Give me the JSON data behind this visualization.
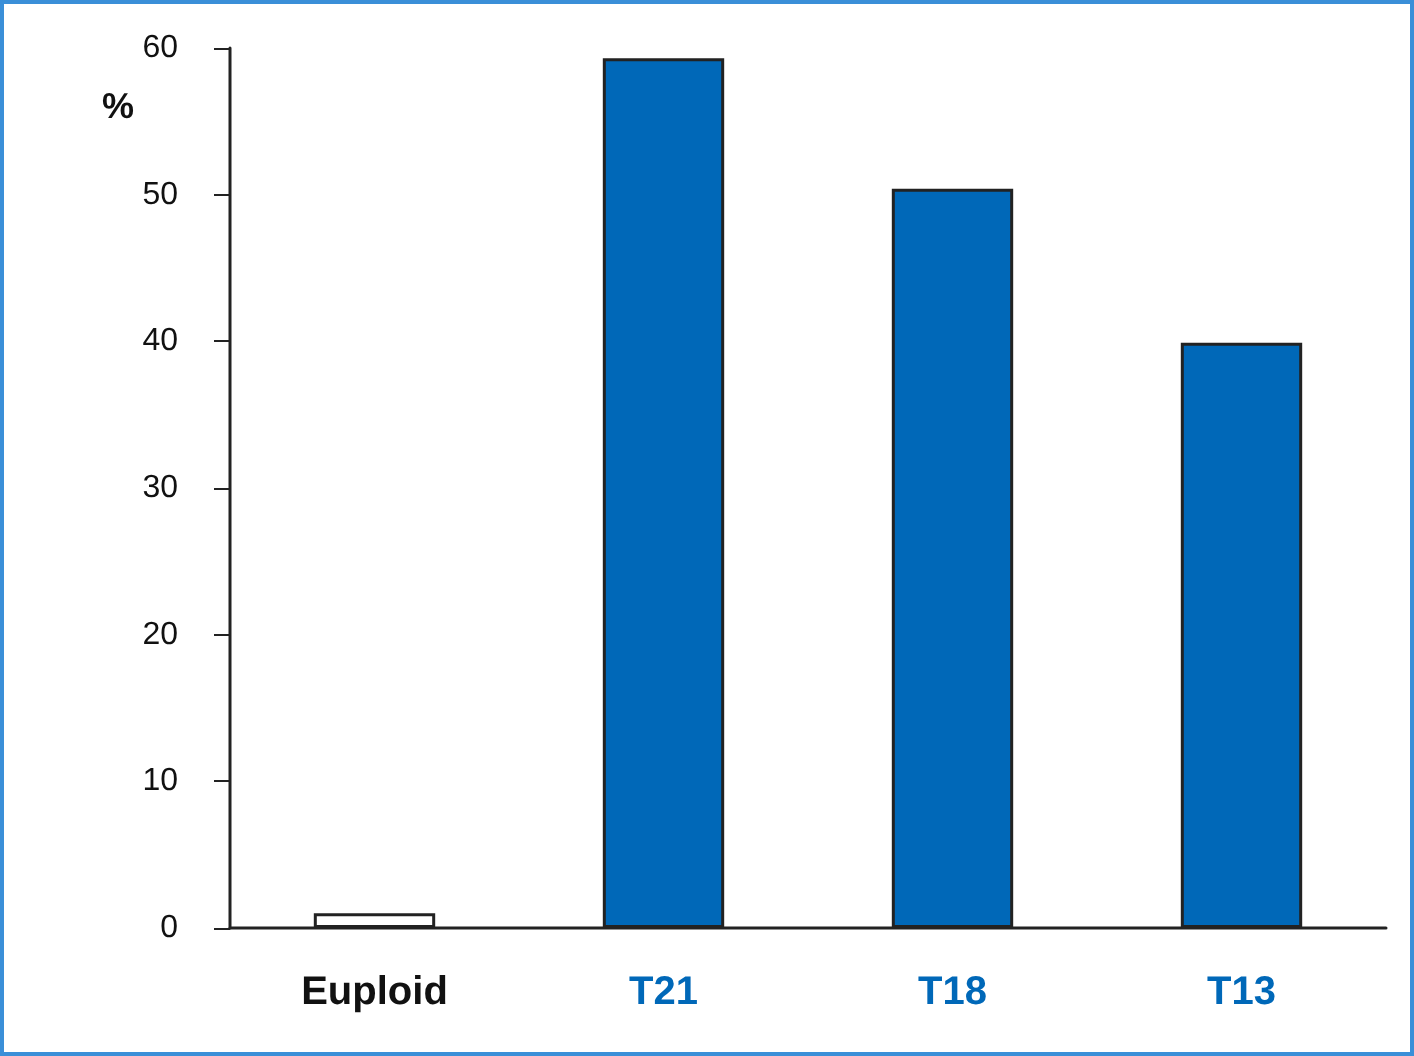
{
  "chart_data": {
    "type": "bar",
    "ylabel": "%",
    "categories": [
      "Euploid",
      "T21",
      "T18",
      "T13"
    ],
    "values": [
      1,
      59.3,
      50.4,
      39.9
    ],
    "colors": [
      "#ffffff",
      "#0068b8",
      "#0068b8",
      "#0068b8"
    ],
    "ylim": [
      0,
      60
    ],
    "yticks": [
      0,
      10,
      20,
      30,
      40,
      50,
      60
    ],
    "grid": false
  }
}
